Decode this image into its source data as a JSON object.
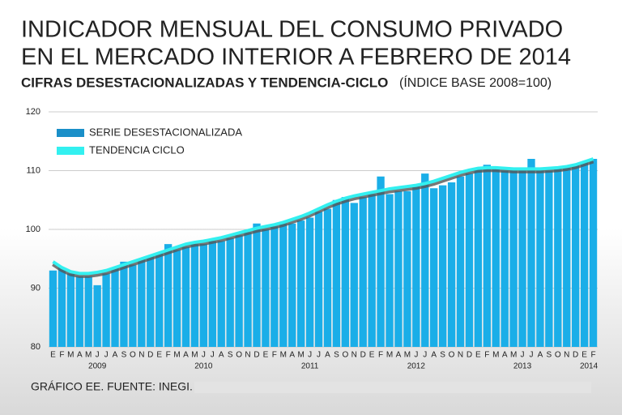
{
  "title_lines": [
    "INDICADOR MENSUAL DEL CONSUMO PRIVADO",
    "EN EL MERCADO INTERIOR A FEBRERO DE 2014"
  ],
  "subtitle": "CIFRAS DESESTACIONALIZADAS Y TENDENCIA-CICLO",
  "subtitle_note": "(ÍNDICE BASE 2008=100)",
  "source": "GRÁFICO EE. FUENTE: INEGI.",
  "chart_data": {
    "type": "bar_line",
    "categories": [
      "E",
      "F",
      "M",
      "A",
      "M",
      "J",
      "J",
      "A",
      "S",
      "O",
      "N",
      "D",
      "E",
      "F",
      "M",
      "A",
      "M",
      "J",
      "J",
      "A",
      "S",
      "O",
      "N",
      "D",
      "E",
      "F",
      "M",
      "A",
      "M",
      "J",
      "J",
      "A",
      "S",
      "O",
      "N",
      "D",
      "E",
      "F",
      "M",
      "A",
      "M",
      "J",
      "J",
      "A",
      "S",
      "O",
      "N",
      "D",
      "E",
      "F",
      "M",
      "A",
      "M",
      "J",
      "J",
      "A",
      "S",
      "O",
      "N",
      "D",
      "E",
      "F"
    ],
    "years": [
      "2009",
      "2010",
      "2011",
      "2012",
      "2013",
      "2014"
    ],
    "series": [
      {
        "name": "SERIE DESESTACIONALIZADA",
        "color": "#1aaee8",
        "legend_color": "#1a8fc8",
        "values": [
          93,
          93.5,
          92.5,
          92,
          92,
          90.5,
          92.5,
          93.5,
          94.5,
          94,
          95,
          95.5,
          96,
          97.5,
          96.5,
          97,
          97.5,
          97.5,
          98,
          98,
          98.5,
          99,
          99.5,
          101,
          100,
          100.5,
          101,
          101,
          101.5,
          102,
          103,
          103.5,
          105,
          105.5,
          104.5,
          105.5,
          106,
          109,
          106,
          106.5,
          106.5,
          107.5,
          109.5,
          107,
          107.5,
          108,
          109,
          109.5,
          110.5,
          111,
          110.5,
          110,
          110,
          110,
          112,
          110,
          110,
          110.5,
          110.5,
          111,
          111.5,
          112
        ]
      },
      {
        "name": "TENDENCIA CICLO",
        "color": "#33f0f0",
        "values": [
          94.5,
          93.5,
          92.8,
          92.5,
          92.5,
          92.7,
          93,
          93.5,
          94,
          94.5,
          95,
          95.5,
          96,
          96.5,
          97,
          97.5,
          97.8,
          98,
          98.3,
          98.6,
          99,
          99.4,
          99.8,
          100.2,
          100.5,
          100.8,
          101.2,
          101.7,
          102.2,
          102.8,
          103.5,
          104.2,
          104.8,
          105.3,
          105.7,
          106,
          106.3,
          106.6,
          106.9,
          107.1,
          107.3,
          107.5,
          107.8,
          108.2,
          108.7,
          109.2,
          109.7,
          110.1,
          110.4,
          110.5,
          110.5,
          110.4,
          110.3,
          110.3,
          110.3,
          110.3,
          110.4,
          110.5,
          110.7,
          111,
          111.5,
          112
        ]
      }
    ],
    "ylim": [
      80,
      120
    ],
    "yticks": [
      80,
      90,
      100,
      110,
      120
    ]
  }
}
